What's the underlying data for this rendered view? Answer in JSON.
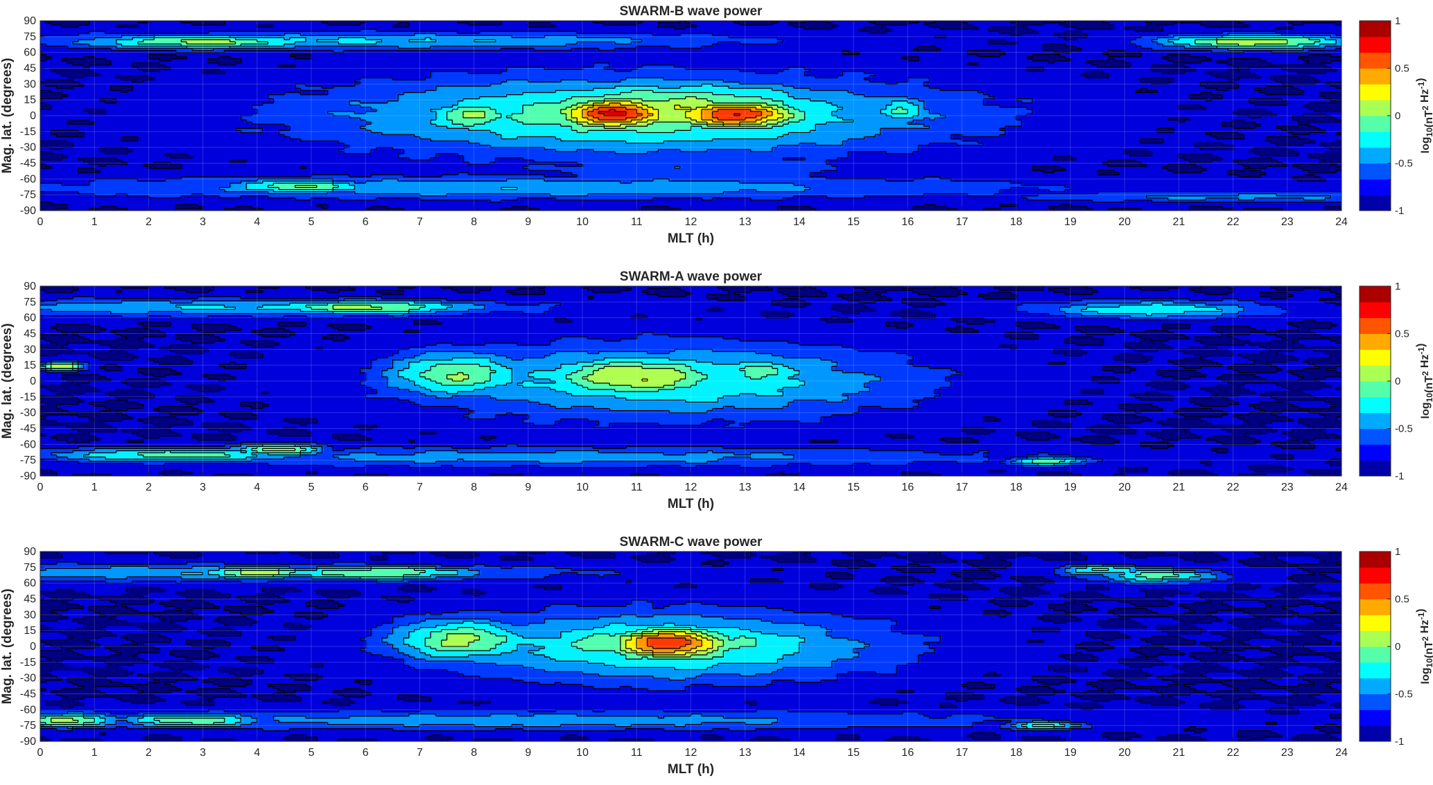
{
  "chart_data": [
    {
      "type": "heatmap",
      "title": "SWARM-B wave power",
      "xlabel": "MLT (h)",
      "ylabel": "Mag. lat. (degrees)",
      "xlim": [
        0,
        24
      ],
      "ylim": [
        -90,
        90
      ],
      "xticks": [
        0,
        1,
        2,
        3,
        4,
        5,
        6,
        7,
        8,
        9,
        10,
        11,
        12,
        13,
        14,
        15,
        16,
        17,
        18,
        19,
        20,
        21,
        22,
        23,
        24
      ],
      "yticks": [
        90,
        75,
        60,
        45,
        30,
        15,
        0,
        -15,
        -30,
        -45,
        -60,
        -75,
        -90
      ],
      "colorbar": {
        "label": "log10(nT2 Hz-1)",
        "label_main": "log",
        "label_sub1": "10",
        "label_mid": "(nT",
        "label_sup1": "2",
        "label_mid2": " Hz",
        "label_sup2": "-1",
        "label_end": ")",
        "ticks": [
          1,
          0.5,
          0,
          -0.5,
          -1
        ],
        "tick_labels": [
          "1",
          "0.5",
          "0",
          "-0.5",
          "-1"
        ],
        "range": [
          -1,
          1
        ],
        "colormap": "jet"
      },
      "background_value": -0.82,
      "features": [
        {
          "mlt": 10.6,
          "lat": 2,
          "peak": 0.85,
          "sx": 0.9,
          "sy": 12
        },
        {
          "mlt": 12.8,
          "lat": 1,
          "peak": 0.8,
          "sx": 1.0,
          "sy": 11
        },
        {
          "mlt": 8.0,
          "lat": 0,
          "peak": 0.12,
          "sx": 0.7,
          "sy": 12
        },
        {
          "mlt": 11.6,
          "lat": 5,
          "peak": 0.25,
          "sx": 2.6,
          "sy": 20
        },
        {
          "mlt": 11.0,
          "lat": 0,
          "peak": 0.05,
          "sx": 4.0,
          "sy": 26
        },
        {
          "mlt": 15.9,
          "lat": 5,
          "peak": -0.05,
          "sx": 0.4,
          "sy": 10
        },
        {
          "mlt": 3.0,
          "lat": 70,
          "peak": 0.15,
          "sx": 1.6,
          "sy": 5
        },
        {
          "mlt": 22.4,
          "lat": 70,
          "peak": 0.25,
          "sx": 1.3,
          "sy": 5
        },
        {
          "mlt": 6.0,
          "lat": 71,
          "peak": -0.25,
          "sx": 5.0,
          "sy": 6
        },
        {
          "mlt": 4.8,
          "lat": -67,
          "peak": 0.1,
          "sx": 1.0,
          "sy": 5
        },
        {
          "mlt": 9.0,
          "lat": -68,
          "peak": -0.3,
          "sx": 6.5,
          "sy": 8
        },
        {
          "mlt": 12.0,
          "lat": -48,
          "peak": -0.5,
          "sx": 2.5,
          "sy": 14
        },
        {
          "mlt": 22.0,
          "lat": -77,
          "peak": -0.4,
          "sx": 3.0,
          "sy": 4
        }
      ]
    },
    {
      "type": "heatmap",
      "title": "SWARM-A wave power",
      "xlabel": "MLT (h)",
      "ylabel": "Mag. lat. (degrees)",
      "xlim": [
        0,
        24
      ],
      "ylim": [
        -90,
        90
      ],
      "xticks": [
        0,
        1,
        2,
        3,
        4,
        5,
        6,
        7,
        8,
        9,
        10,
        11,
        12,
        13,
        14,
        15,
        16,
        17,
        18,
        19,
        20,
        21,
        22,
        23,
        24
      ],
      "yticks": [
        90,
        75,
        60,
        45,
        30,
        15,
        0,
        -15,
        -30,
        -45,
        -60,
        -75,
        -90
      ],
      "colorbar": {
        "label": "log10(nT2 Hz-1)",
        "label_main": "log",
        "label_sub1": "10",
        "label_mid": "(nT",
        "label_sup1": "2",
        "label_mid2": " Hz",
        "label_sup2": "-1",
        "label_end": ")",
        "ticks": [
          1,
          0.5,
          0,
          -0.5,
          -1
        ],
        "tick_labels": [
          "1",
          "0.5",
          "0",
          "-0.5",
          "-1"
        ],
        "range": [
          -1,
          1
        ],
        "colormap": "jet"
      },
      "background_value": -0.82,
      "features": [
        {
          "mlt": 7.7,
          "lat": 6,
          "peak": 0.1,
          "sx": 1.0,
          "sy": 16
        },
        {
          "mlt": 11.0,
          "lat": 4,
          "peak": 0.3,
          "sx": 1.4,
          "sy": 15
        },
        {
          "mlt": 13.3,
          "lat": 8,
          "peak": 0.0,
          "sx": 0.7,
          "sy": 12
        },
        {
          "mlt": 11.5,
          "lat": 0,
          "peak": -0.1,
          "sx": 3.2,
          "sy": 25
        },
        {
          "mlt": 0.4,
          "lat": 14,
          "peak": 0.3,
          "sx": 0.3,
          "sy": 3
        },
        {
          "mlt": 6.0,
          "lat": 70,
          "peak": 0.15,
          "sx": 1.5,
          "sy": 5
        },
        {
          "mlt": 3.5,
          "lat": 70,
          "peak": -0.25,
          "sx": 4.0,
          "sy": 6
        },
        {
          "mlt": 20.5,
          "lat": 68,
          "peak": -0.1,
          "sx": 1.5,
          "sy": 6
        },
        {
          "mlt": 2.5,
          "lat": -70,
          "peak": 0.0,
          "sx": 1.8,
          "sy": 5
        },
        {
          "mlt": 4.4,
          "lat": -65,
          "peak": 0.2,
          "sx": 0.6,
          "sy": 4
        },
        {
          "mlt": 9.5,
          "lat": -72,
          "peak": -0.35,
          "sx": 6.0,
          "sy": 7
        },
        {
          "mlt": 18.6,
          "lat": -76,
          "peak": 0.1,
          "sx": 0.5,
          "sy": 3
        }
      ]
    },
    {
      "type": "heatmap",
      "title": "SWARM-C wave power",
      "xlabel": "MLT (h)",
      "ylabel": "Mag. lat. (degrees)",
      "xlim": [
        0,
        24
      ],
      "ylim": [
        -90,
        90
      ],
      "xticks": [
        0,
        1,
        2,
        3,
        4,
        5,
        6,
        7,
        8,
        9,
        10,
        11,
        12,
        13,
        14,
        15,
        16,
        17,
        18,
        19,
        20,
        21,
        22,
        23,
        24
      ],
      "yticks": [
        90,
        75,
        60,
        45,
        30,
        15,
        0,
        -15,
        -30,
        -45,
        -60,
        -75,
        -90
      ],
      "colorbar": {
        "label": "log10(nT2 Hz-1)",
        "label_main": "log",
        "label_sub1": "10",
        "label_mid": "(nT",
        "label_sup1": "2",
        "label_mid2": " Hz",
        "label_sup2": "-1",
        "label_end": ")",
        "ticks": [
          1,
          0.5,
          0,
          -0.5,
          -1
        ],
        "tick_labels": [
          "1",
          "0.5",
          "0",
          "-0.5",
          "-1"
        ],
        "range": [
          -1,
          1
        ],
        "colormap": "jet"
      },
      "background_value": -0.82,
      "features": [
        {
          "mlt": 11.6,
          "lat": 3,
          "peak": 0.8,
          "sx": 0.9,
          "sy": 12
        },
        {
          "mlt": 7.8,
          "lat": 6,
          "peak": 0.15,
          "sx": 1.0,
          "sy": 15
        },
        {
          "mlt": 10.4,
          "lat": 2,
          "peak": 0.05,
          "sx": 0.9,
          "sy": 14
        },
        {
          "mlt": 11.5,
          "lat": 0,
          "peak": 0.0,
          "sx": 2.8,
          "sy": 23
        },
        {
          "mlt": 13.0,
          "lat": 4,
          "peak": 0.0,
          "sx": 0.6,
          "sy": 10
        },
        {
          "mlt": 4.0,
          "lat": 70,
          "peak": 0.25,
          "sx": 0.8,
          "sy": 4
        },
        {
          "mlt": 6.2,
          "lat": 70,
          "peak": 0.1,
          "sx": 1.4,
          "sy": 5
        },
        {
          "mlt": 3.0,
          "lat": 70,
          "peak": -0.3,
          "sx": 5.0,
          "sy": 6
        },
        {
          "mlt": 20.6,
          "lat": 67,
          "peak": 0.0,
          "sx": 0.8,
          "sy": 5
        },
        {
          "mlt": 19.6,
          "lat": 72,
          "peak": -0.05,
          "sx": 0.6,
          "sy": 4
        },
        {
          "mlt": 0.4,
          "lat": -70,
          "peak": 0.15,
          "sx": 0.8,
          "sy": 5
        },
        {
          "mlt": 2.8,
          "lat": -70,
          "peak": 0.05,
          "sx": 1.0,
          "sy": 5
        },
        {
          "mlt": 9.0,
          "lat": -70,
          "peak": -0.35,
          "sx": 6.5,
          "sy": 7
        },
        {
          "mlt": 18.5,
          "lat": -75,
          "peak": 0.0,
          "sx": 0.5,
          "sy": 3
        }
      ]
    }
  ]
}
